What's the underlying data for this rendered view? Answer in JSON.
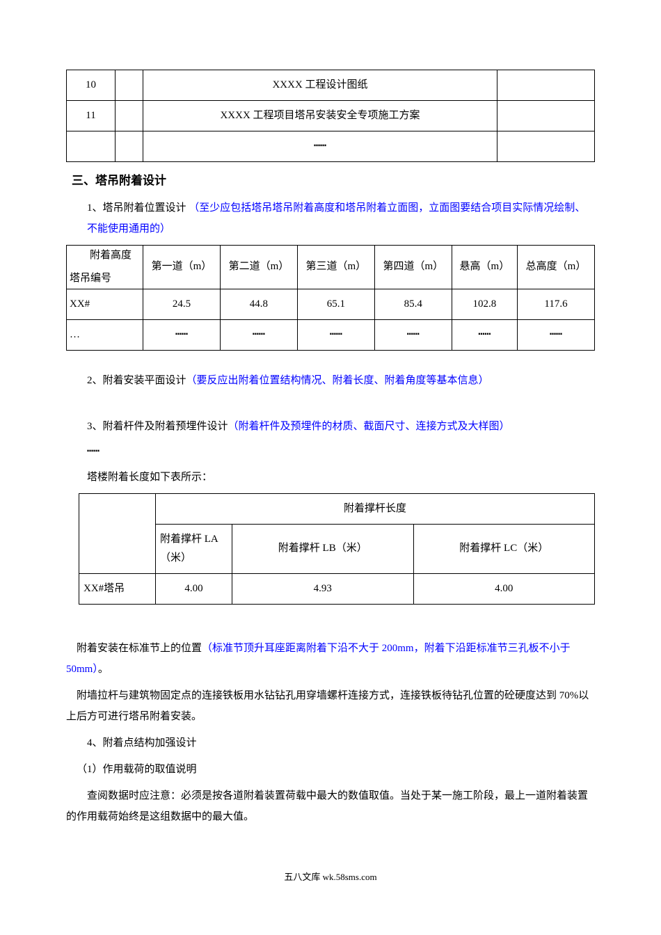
{
  "table1": {
    "rows": [
      {
        "num": "10",
        "blank": "",
        "desc": "XXXX 工程设计图纸",
        "last": ""
      },
      {
        "num": "11",
        "blank": "",
        "desc": "XXXX 工程项目塔吊安装安全专项施工方案",
        "last": ""
      },
      {
        "num": "",
        "blank": "",
        "desc": "┅┅",
        "last": ""
      }
    ]
  },
  "heading1": "三、塔吊附着设计",
  "para1_prefix": "1、塔吊附着位置设计",
  "para1_blue": "（至少应包括塔吊塔吊附着高度和塔吊附着立面图，立面图要结合项目实际情况绘制、不能使用通用的）",
  "table2": {
    "diag_top": "附着高度",
    "diag_bottom": "塔吊编号",
    "headers": [
      "第一道（m）",
      "第二道（m）",
      "第三道（m）",
      "第四道（m）",
      "悬高（m）",
      "总高度（m）"
    ],
    "rows": [
      [
        "XX#",
        "24.5",
        "44.8",
        "65.1",
        "85.4",
        "102.8",
        "117.6"
      ],
      [
        "…",
        "┅┅",
        "┅┅",
        "┅┅",
        "┅┅",
        "┅┅",
        "┅┅"
      ]
    ]
  },
  "para2_prefix": "2、附着安装平面设计",
  "para2_blue": "（要反应出附着位置结构情况、附着长度、附着角度等基本信息）",
  "para3_prefix": "3、附着杆件及附着预埋件设计",
  "para3_blue": "（附着杆件及预埋件的材质、截面尺寸、连接方式及大样图）",
  "ellipsis": "┅┅",
  "para4": "塔楼附着长度如下表所示：",
  "table3": {
    "header_merged": "附着撑杆长度",
    "headers": [
      "附着撑杆 LA（米）",
      "附着撑杆 LB（米）",
      "附着撑杆 LC（米）"
    ],
    "row_label": "XX#塔吊",
    "row_values": [
      "4.00",
      "4.93",
      "4.00"
    ]
  },
  "para5_black_a": "附着安装在标准节上的位置",
  "para5_blue_a": "（标准节顶升耳座距离附着下沿不大于 200mm，附着下沿距标准节三孔板不小于 50mm）",
  "para5_black_b": "。",
  "para6": "附墙拉杆与建筑物固定点的连接铁板用水钻钻孔用穿墙螺杆连接方式，连接铁板待钻孔位置的砼硬度达到 70%以上后方可进行塔吊附着安装。",
  "para7": "4、附着点结构加强设计",
  "para8": "（1）作用载荷的取值说明",
  "para9": "查阅数据时应注意：必须是按各道附着装置荷载中最大的数值取值。当处于某一施工阶段，最上一道附着装置的作用载荷始终是这组数据中的最大值。",
  "footer": "五八文库 wk.58sms.com"
}
